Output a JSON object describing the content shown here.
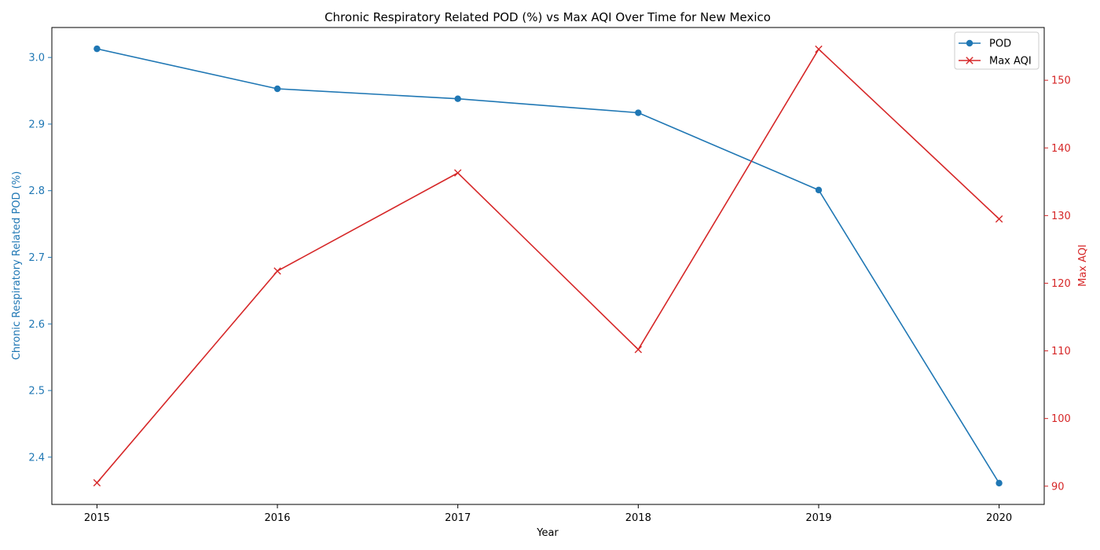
{
  "chart_data": {
    "type": "line",
    "title": "Chronic Respiratory Related POD (%) vs Max AQI Over Time for New Mexico",
    "xlabel": "Year",
    "categories": [
      "2015",
      "2016",
      "2017",
      "2018",
      "2019",
      "2020"
    ],
    "x": [
      2015,
      2016,
      2017,
      2018,
      2019,
      2020
    ],
    "xlim": [
      2014.75,
      2020.25
    ],
    "grid": false,
    "legend_placement": "top-right",
    "series": [
      {
        "name": "POD",
        "axis": "left",
        "marker": "circle",
        "color": "#1f77b4",
        "values": [
          3.013,
          2.953,
          2.938,
          2.917,
          2.801,
          2.361
        ]
      },
      {
        "name": "Max AQI",
        "axis": "right",
        "marker": "x",
        "color": "#d62728",
        "values": [
          90.5,
          121.8,
          136.3,
          110.2,
          154.6,
          129.5
        ]
      }
    ],
    "y_left": {
      "label": "Chronic Respiratory Related POD (%)",
      "color": "#1f77b4",
      "lim": [
        2.329,
        3.045
      ],
      "ticks": [
        "2.4",
        "2.5",
        "2.6",
        "2.7",
        "2.8",
        "2.9",
        "3.0"
      ]
    },
    "y_right": {
      "label": "Max AQI",
      "color": "#d62728",
      "lim": [
        87.3,
        157.8
      ],
      "ticks": [
        "90",
        "100",
        "110",
        "120",
        "130",
        "140",
        "150"
      ]
    }
  }
}
